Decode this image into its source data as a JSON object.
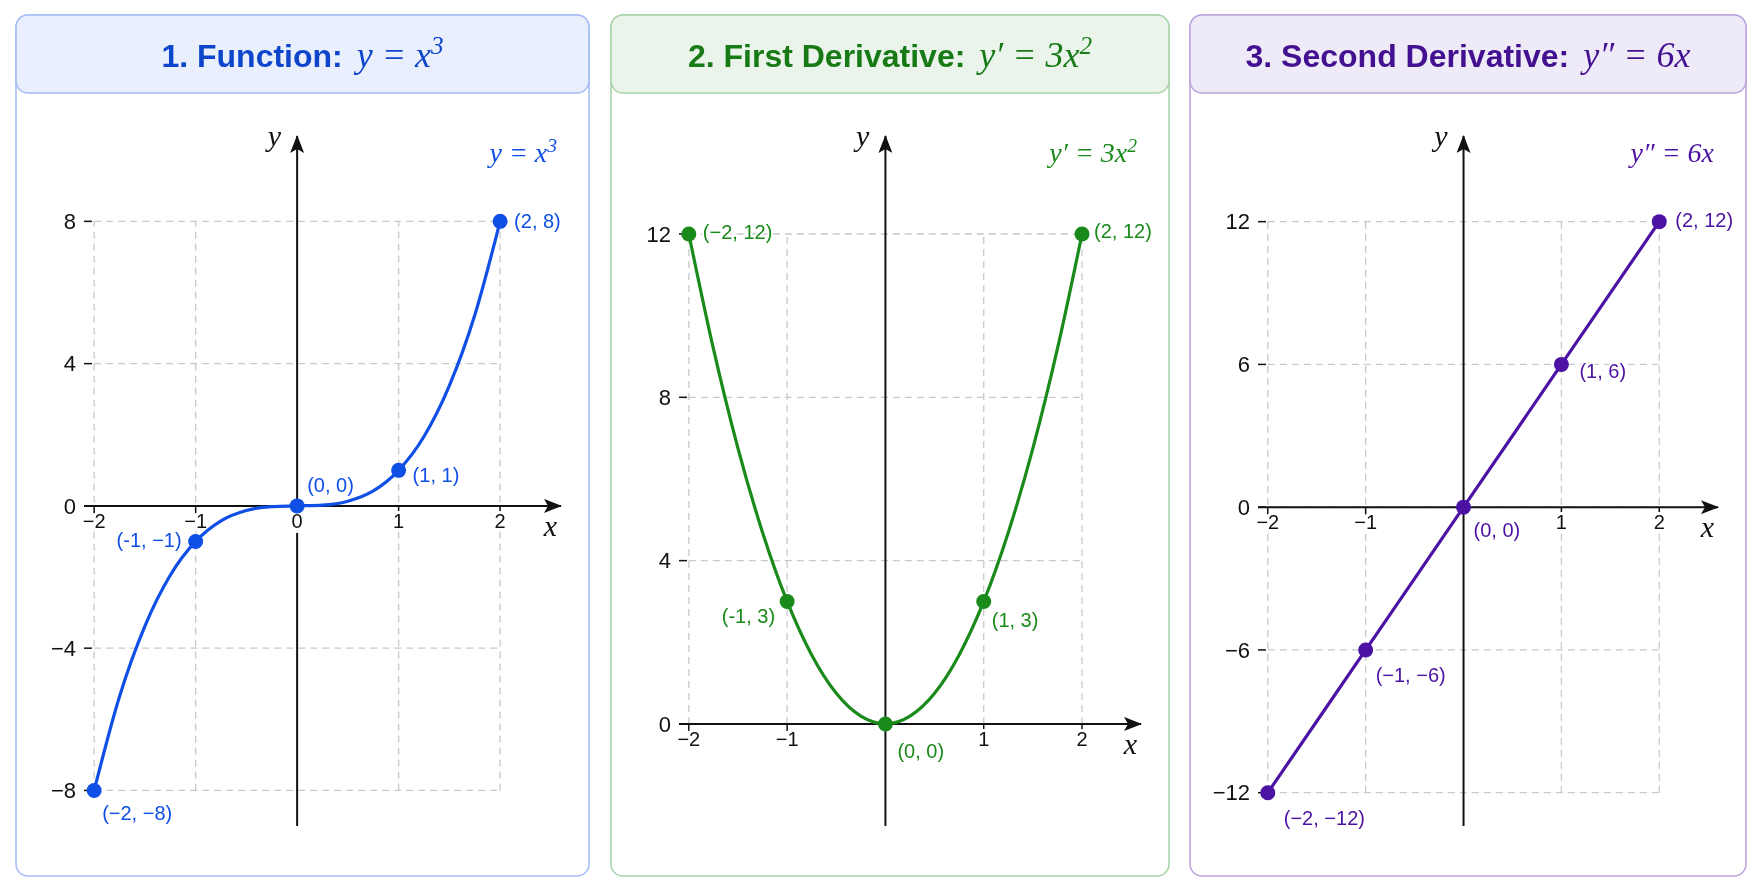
{
  "chart_data": [
    {
      "type": "line",
      "title": "1. Function: y = x$^{3}$",
      "xlabel": "x",
      "ylabel": "y",
      "series": [
        {
          "name": "y = x$^{3}$",
          "color": "#0f4fe6",
          "type": "line",
          "marker": "none",
          "x": [
            -2,
            -1.75,
            -1.5,
            -1.25,
            -1,
            -0.75,
            -0.5,
            -0.25,
            0,
            0.25,
            0.5,
            0.75,
            1,
            1.25,
            1.5,
            1.75,
            2
          ],
          "values": [
            -8,
            -5.36,
            -3.38,
            -1.95,
            -1,
            -0.42,
            -0.13,
            -0.02,
            0,
            0.02,
            0.13,
            0.42,
            1,
            1.95,
            3.38,
            5.36,
            8
          ]
        },
        {
          "type": "scatter",
          "color": "#0f4fe6",
          "marker": "circle",
          "x": [
            -2,
            -1,
            0,
            1,
            2
          ],
          "values": [
            -8,
            -1,
            0,
            1,
            8
          ],
          "value_labels": [
            "(−2, −8)",
            "(-1, −1)",
            "(0, 0)",
            "(1, 1)",
            "(2, 8)"
          ]
        }
      ],
      "xlim": [
        -2.1,
        2.6
      ],
      "ylim": [
        -9,
        10.4
      ],
      "xticks": [
        -2,
        -1,
        0,
        1,
        2
      ],
      "yticks": [
        -8,
        -4,
        0,
        4,
        8
      ],
      "grid": true
    },
    {
      "type": "line",
      "title": "2. First Derivative: y′ = 3x$^{2}$",
      "xlabel": "x",
      "ylabel": "y",
      "series": [
        {
          "name": "y′ = 3x$^{2}$",
          "color": "#1a8a1a",
          "type": "line",
          "marker": "none",
          "x": [
            -2,
            -1.75,
            -1.5,
            -1.25,
            -1,
            -0.75,
            -0.5,
            -0.25,
            0,
            0.25,
            0.5,
            0.75,
            1,
            1.25,
            1.5,
            1.75,
            2
          ],
          "values": [
            12,
            9.19,
            6.75,
            4.69,
            3,
            1.69,
            0.75,
            0.19,
            0,
            0.19,
            0.75,
            1.69,
            3,
            4.69,
            6.75,
            9.19,
            12
          ]
        },
        {
          "type": "scatter",
          "color": "#1a8a1a",
          "marker": "circle",
          "x": [
            -2,
            -1,
            0,
            1,
            2
          ],
          "values": [
            12,
            3,
            0,
            3,
            12
          ],
          "value_labels": [
            "(−2, 12)",
            "(-1, 3)",
            "(0, 0)",
            "(1, 3)",
            "(2, 12)"
          ]
        }
      ],
      "xlim": [
        -2.1,
        2.6
      ],
      "ylim": [
        -2.5,
        14.4
      ],
      "xticks": [
        -2,
        -1,
        1,
        2
      ],
      "yticks": [
        0,
        4,
        8,
        12
      ],
      "grid": true
    },
    {
      "type": "line",
      "title": "3. Second Derivative: y″ = 6x",
      "xlabel": "x",
      "ylabel": "y",
      "series": [
        {
          "name": "y″ = 6x",
          "color": "#4b12a3",
          "type": "line",
          "marker": "none",
          "x": [
            -2,
            -1,
            0,
            1,
            2
          ],
          "values": [
            -12,
            -6,
            0,
            6,
            12
          ]
        },
        {
          "type": "scatter",
          "color": "#4b12a3",
          "marker": "circle",
          "x": [
            -2,
            -1,
            0,
            1,
            2
          ],
          "values": [
            -12,
            -6,
            0,
            6,
            12
          ],
          "value_labels": [
            "(−2, −12)",
            "(−1, −6)",
            "(0, 0)",
            "(1, 6)",
            "(2, 12)"
          ]
        }
      ],
      "xlim": [
        -2.1,
        2.6
      ],
      "ylim": [
        -13.4,
        15.6
      ],
      "xticks": [
        -2,
        -1,
        1,
        2
      ],
      "yticks": [
        -12,
        -6,
        0,
        6,
        12
      ],
      "grid": true
    }
  ]
}
